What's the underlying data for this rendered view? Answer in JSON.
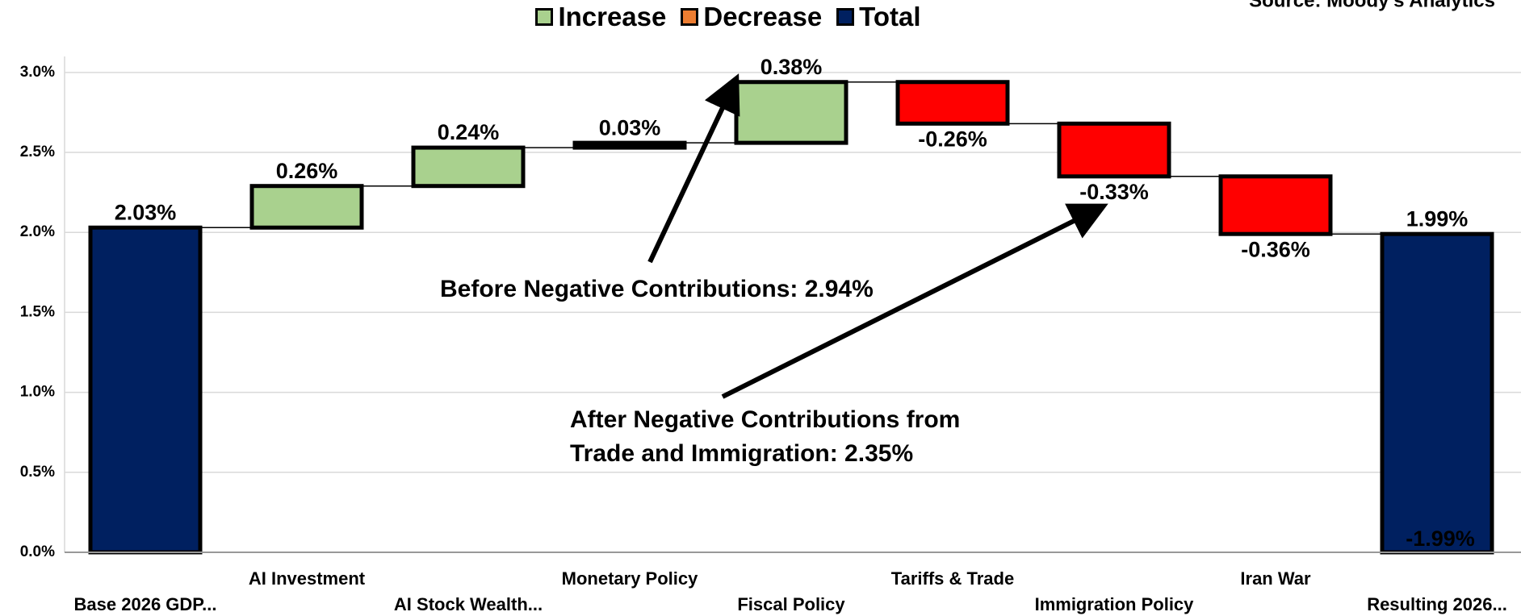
{
  "chart_data": {
    "type": "waterfall",
    "source": "Source: Moody's Analytics",
    "legend": [
      {
        "name": "Increase",
        "color": "#a9d18e"
      },
      {
        "name": "Decrease",
        "color": "#ed7d31"
      },
      {
        "name": "Total",
        "color": "#002060"
      }
    ],
    "categories": [
      "Base 2026 GDP...",
      "AI Investment",
      "AI Stock Wealth...",
      "Monetary Policy",
      "Fiscal Policy",
      "Tariffs & Trade",
      "Immigration Policy",
      "Iran War",
      "Resulting 2026..."
    ],
    "values": [
      2.03,
      0.26,
      0.24,
      0.03,
      0.38,
      -0.26,
      -0.33,
      -0.36,
      1.99
    ],
    "value_labels": [
      "2.03%",
      "0.26%",
      "0.24%",
      "0.03%",
      "0.38%",
      "-0.26%",
      "-0.33%",
      "-0.36%",
      "1.99%"
    ],
    "kinds": [
      "total",
      "increase",
      "increase",
      "increase",
      "increase",
      "decrease",
      "decrease",
      "decrease",
      "total"
    ],
    "bar_colors": {
      "increase": "#a9d18e",
      "decrease": "#ff0000",
      "total": "#002060"
    },
    "extra_label": "-1.99%",
    "annotations": [
      {
        "lines": [
          "Before Negative Contributions: 2.94%"
        ]
      },
      {
        "lines": [
          "After Negative Contributions from",
          "Trade and Immigration: 2.35%"
        ]
      }
    ],
    "ylim": [
      0,
      3.1
    ],
    "yticks": [
      {
        "value": 0,
        "label": "0.0%"
      },
      {
        "value": 0.5,
        "label": "0.5%"
      },
      {
        "value": 1,
        "label": "1.0%"
      },
      {
        "value": 1.5,
        "label": "1.5%"
      },
      {
        "value": 2,
        "label": "2.0%"
      },
      {
        "value": 2.5,
        "label": "2.5%"
      },
      {
        "value": 3,
        "label": "3.0%"
      }
    ],
    "grid": true
  }
}
